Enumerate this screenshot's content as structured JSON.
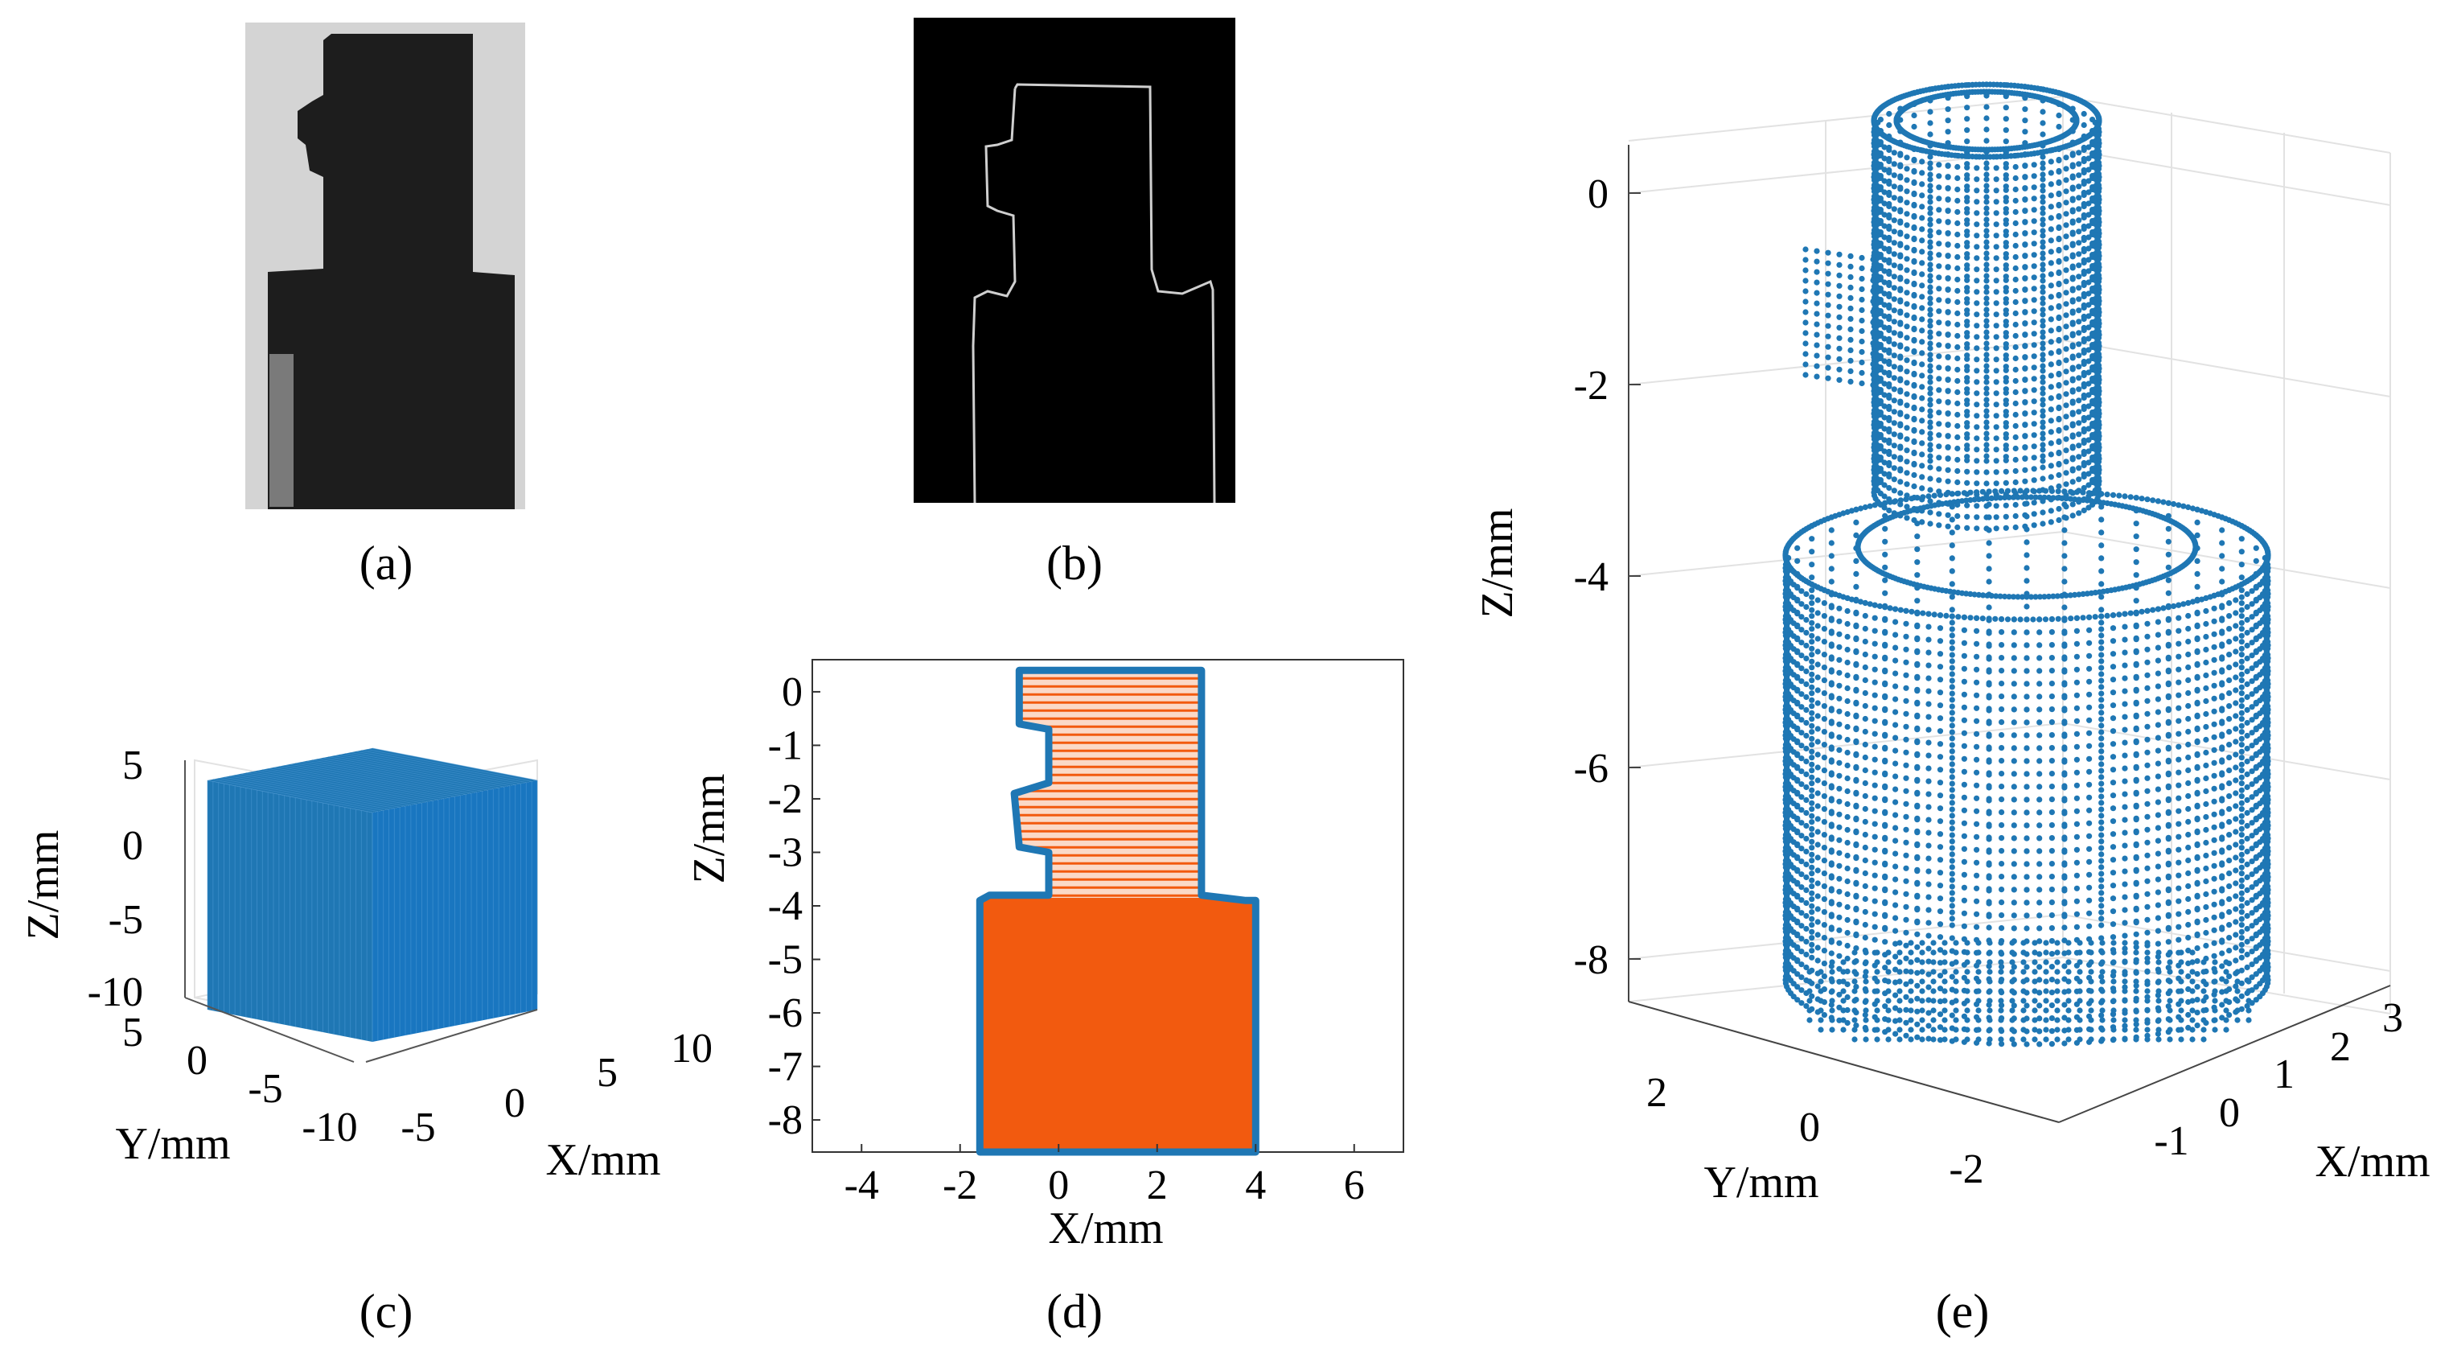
{
  "panels": {
    "a": {
      "caption": "(a)"
    },
    "b": {
      "caption": "(b)"
    },
    "c": {
      "caption": "(c)"
    },
    "d": {
      "caption": "(d)"
    },
    "e": {
      "caption": "(e)"
    }
  },
  "colors": {
    "points": "#1f77b4",
    "fill": "#f25a0f",
    "edge": "#cfcfcf",
    "photo_bg": "#d4d4d4",
    "photo_obj": "#1d1d1d"
  },
  "chart_data": [
    {
      "panel": "c",
      "type": "scatter",
      "description_free": true,
      "xlabel": "X/mm",
      "ylabel": "Y/mm",
      "zlabel": "Z/mm",
      "xticks": [
        "-5",
        "0",
        "5",
        "10"
      ],
      "yticks": [
        "5",
        "0",
        "-5",
        "-10"
      ],
      "zticks": [
        "5",
        "0",
        "-5",
        "-10"
      ],
      "xlim": [
        -5,
        10
      ],
      "ylim": [
        -10,
        5
      ],
      "zlim": [
        -10,
        5
      ],
      "grid": true
    },
    {
      "panel": "d",
      "type": "area",
      "xlabel": "X/mm",
      "ylabel": "Z/mm",
      "xticks": [
        "-4",
        "-2",
        "0",
        "2",
        "4",
        "6"
      ],
      "yticks": [
        "0",
        "-1",
        "-2",
        "-3",
        "-4",
        "-5",
        "-6",
        "-7",
        "-8"
      ],
      "xlim": [
        -5,
        7
      ],
      "ylim": [
        -8.6,
        0.6
      ],
      "outline": {
        "x": [
          -0.6,
          2.9,
          2.9,
          3.8,
          4.0,
          4.0,
          -1.6,
          -1.6,
          -1.4,
          -0.2,
          -0.2,
          -0.8,
          -0.9,
          -0.2,
          -0.2,
          -0.8,
          -0.8,
          -0.6
        ],
        "z": [
          0.4,
          0.4,
          -3.8,
          -3.9,
          -3.9,
          -8.6,
          -8.6,
          -3.9,
          -3.8,
          -3.8,
          -3.0,
          -2.9,
          -1.9,
          -1.7,
          -0.7,
          -0.6,
          0.4,
          0.4
        ]
      }
    },
    {
      "panel": "e",
      "type": "scatter",
      "xlabel": "X/mm",
      "ylabel": "Y/mm",
      "zlabel": "Z/mm",
      "xticks": [
        "-1",
        "0",
        "1",
        "2",
        "3"
      ],
      "yticks": [
        "2",
        "0",
        "-2"
      ],
      "zticks": [
        "0",
        "-2",
        "-4",
        "-6",
        "-8"
      ],
      "zlim": [
        -8.7,
        0.4
      ],
      "grid": true
    }
  ]
}
